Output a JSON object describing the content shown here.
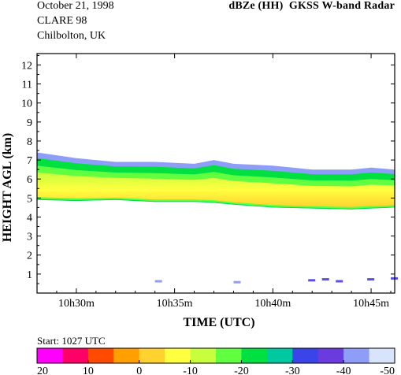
{
  "header": {
    "date": "October 21, 1998",
    "campaign": "CLARE 98",
    "site": "Chilbolton, UK",
    "product": "dBZe (HH)",
    "instrument": "GKSS  W-band Radar"
  },
  "colorbar": {
    "start_label": "Start: 1027 UTC",
    "tick_labels": [
      "20",
      "10",
      "0",
      "-10",
      "-20",
      "-30",
      "-40",
      "-50"
    ],
    "colors": [
      "#ff00ff",
      "#ff0066",
      "#ff4a00",
      "#ffa000",
      "#ffd230",
      "#ffff40",
      "#c8ff3c",
      "#60ff40",
      "#00e040",
      "#00c8a0",
      "#3a44e8",
      "#6a3ce0",
      "#8e9ef8",
      "#d8e4fc"
    ]
  },
  "chart_data": {
    "type": "heatmap",
    "title": "dBZe (HH)  GKSS  W-band Radar",
    "xlabel": "TIME (UTC)",
    "ylabel": "HEIGHT AGL (km)",
    "x_tick_labels": [
      "10h30m",
      "10h35m",
      "10h40m",
      "10h45m"
    ],
    "x_ticks_minutes": [
      30,
      35,
      40,
      45
    ],
    "xlim_minutes": [
      28.0,
      46.2
    ],
    "y_ticks": [
      1,
      2,
      3,
      4,
      5,
      6,
      7,
      8,
      9,
      10,
      11,
      12
    ],
    "ylim": [
      0,
      12.6
    ],
    "colorbar_range_dbz": [
      20,
      -50
    ],
    "cloud_layer": {
      "time_minutes": [
        28.0,
        30.0,
        32.0,
        34.0,
        36.0,
        37.0,
        38.0,
        40.0,
        42.0,
        44.0,
        45.0,
        46.2
      ],
      "base_km": [
        4.9,
        4.85,
        4.9,
        4.8,
        4.8,
        4.75,
        4.65,
        4.5,
        4.45,
        4.4,
        4.45,
        4.5
      ],
      "top_km": [
        7.4,
        7.1,
        6.9,
        6.9,
        6.8,
        7.0,
        6.8,
        6.7,
        6.5,
        6.5,
        6.6,
        6.5
      ],
      "core_dbz_range": [
        -5,
        -15
      ],
      "edge_dbz_range": [
        -30,
        -45
      ]
    },
    "low_returns": {
      "time_minutes": [
        34.0,
        38.0,
        41.8,
        42.5,
        43.2,
        44.8,
        46.0
      ],
      "height_km": [
        0.6,
        0.55,
        0.65,
        0.7,
        0.6,
        0.7,
        0.75
      ],
      "dbz": [
        -48,
        -48,
        -42,
        -40,
        -44,
        -42,
        -40
      ]
    },
    "grid": false
  }
}
